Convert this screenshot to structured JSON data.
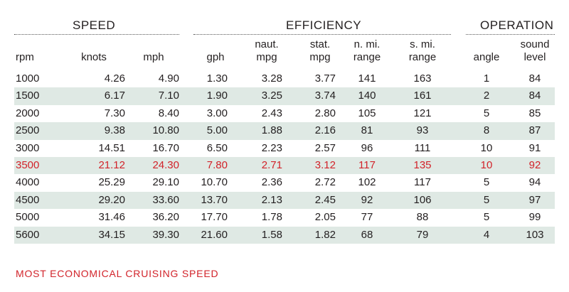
{
  "groups": {
    "speed": "SPEED",
    "efficiency": "EFFICIENCY",
    "operation": "OPERATION"
  },
  "headers": {
    "rpm": "rpm",
    "knots": "knots",
    "mph": "mph",
    "gph": "gph",
    "naut_mpg_1": "naut.",
    "naut_mpg_2": "mpg",
    "stat_mpg_1": "stat.",
    "stat_mpg_2": "mpg",
    "n_range_1": "n. mi.",
    "n_range_2": "range",
    "s_range_1": "s. mi.",
    "s_range_2": "range",
    "angle": "angle",
    "sound_1": "sound",
    "sound_2": "level"
  },
  "rows": [
    {
      "rpm": "1000",
      "knots": "4.26",
      "mph": "4.90",
      "gph": "1.30",
      "nmpg": "3.28",
      "smpg": "3.77",
      "nrange": "141",
      "srange": "163",
      "angle": "1",
      "sound": "84"
    },
    {
      "rpm": "1500",
      "knots": "6.17",
      "mph": "7.10",
      "gph": "1.90",
      "nmpg": "3.25",
      "smpg": "3.74",
      "nrange": "140",
      "srange": "161",
      "angle": "2",
      "sound": "84"
    },
    {
      "rpm": "2000",
      "knots": "7.30",
      "mph": "8.40",
      "gph": "3.00",
      "nmpg": "2.43",
      "smpg": "2.80",
      "nrange": "105",
      "srange": "121",
      "angle": "5",
      "sound": "85"
    },
    {
      "rpm": "2500",
      "knots": "9.38",
      "mph": "10.80",
      "gph": "5.00",
      "nmpg": "1.88",
      "smpg": "2.16",
      "nrange": "81",
      "srange": "93",
      "angle": "8",
      "sound": "87"
    },
    {
      "rpm": "3000",
      "knots": "14.51",
      "mph": "16.70",
      "gph": "6.50",
      "nmpg": "2.23",
      "smpg": "2.57",
      "nrange": "96",
      "srange": "111",
      "angle": "10",
      "sound": "91"
    },
    {
      "rpm": "3500",
      "knots": "21.12",
      "mph": "24.30",
      "gph": "7.80",
      "nmpg": "2.71",
      "smpg": "3.12",
      "nrange": "117",
      "srange": "135",
      "angle": "10",
      "sound": "92"
    },
    {
      "rpm": "4000",
      "knots": "25.29",
      "mph": "29.10",
      "gph": "10.70",
      "nmpg": "2.36",
      "smpg": "2.72",
      "nrange": "102",
      "srange": "117",
      "angle": "5",
      "sound": "94"
    },
    {
      "rpm": "4500",
      "knots": "29.20",
      "mph": "33.60",
      "gph": "13.70",
      "nmpg": "2.13",
      "smpg": "2.45",
      "nrange": "92",
      "srange": "106",
      "angle": "5",
      "sound": "97"
    },
    {
      "rpm": "5000",
      "knots": "31.46",
      "mph": "36.20",
      "gph": "17.70",
      "nmpg": "1.78",
      "smpg": "2.05",
      "nrange": "77",
      "srange": "88",
      "angle": "5",
      "sound": "99"
    },
    {
      "rpm": "5600",
      "knots": "34.15",
      "mph": "39.30",
      "gph": "21.60",
      "nmpg": "1.58",
      "smpg": "1.82",
      "nrange": "68",
      "srange": "79",
      "angle": "4",
      "sound": "103"
    }
  ],
  "highlight_row_index": 5,
  "colors": {
    "highlight": "#d2232a",
    "shade": "#dfe9e4",
    "text": "#231f20"
  },
  "footer": "MOST ECONOMICAL CRUISING SPEED"
}
